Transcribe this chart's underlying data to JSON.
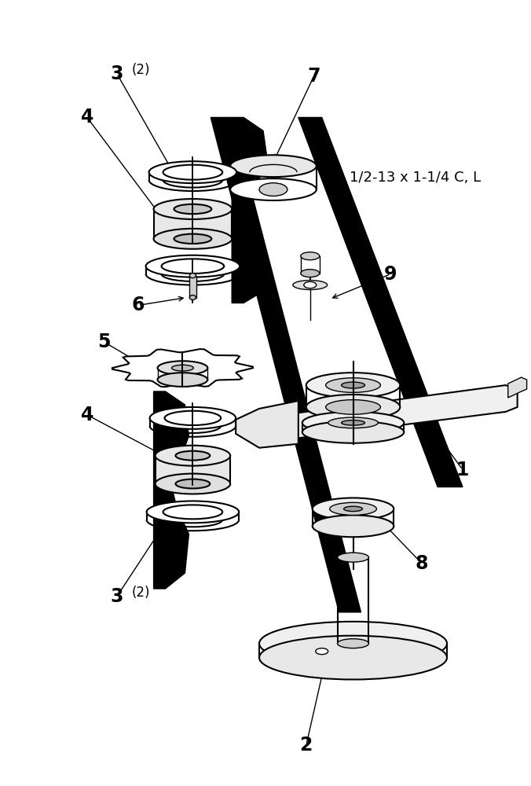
{
  "bg_color": "#ffffff",
  "line_color": "#000000",
  "fig_width": 6.76,
  "fig_height": 10.0
}
